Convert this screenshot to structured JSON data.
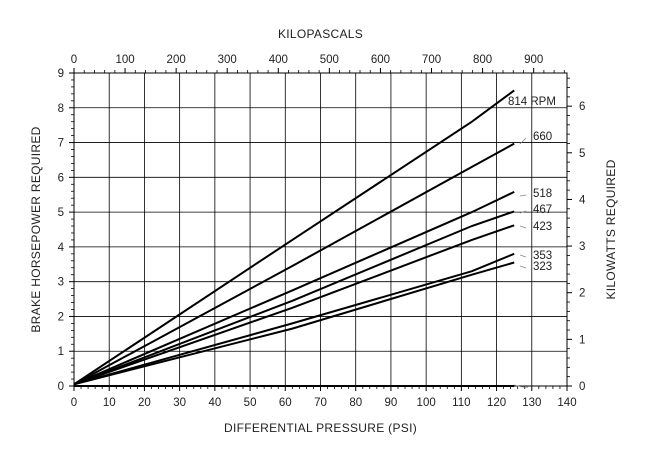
{
  "chart_data": {
    "type": "line",
    "xlabel": "DIFFERENTIAL PRESSURE (PSI)",
    "ylabel": "BRAKE HORSEPOWER REQUIRED",
    "x2label": "KILOPASCALS",
    "y2label": "KILOWATTS REQUIRED",
    "xlim": [
      0,
      140
    ],
    "ylim": [
      0,
      9
    ],
    "x2lim": [
      0,
      965.27
    ],
    "y2lim": [
      0,
      6.711
    ],
    "xticks": [
      0,
      10,
      20,
      30,
      40,
      50,
      60,
      70,
      80,
      90,
      100,
      110,
      120,
      130,
      140
    ],
    "yticks": [
      0,
      1,
      2,
      3,
      4,
      5,
      6,
      7,
      8,
      9
    ],
    "x2ticks": [
      0,
      100,
      200,
      300,
      400,
      500,
      600,
      700,
      800,
      900
    ],
    "y2ticks": [
      0,
      1,
      2,
      3,
      4,
      5,
      6
    ],
    "grid": true,
    "series": [
      {
        "name": "814 RPM",
        "points": [
          [
            0,
            0.05
          ],
          [
            62,
            4.2
          ],
          [
            113,
            7.6
          ],
          [
            125,
            8.5
          ]
        ]
      },
      {
        "name": "660",
        "points": [
          [
            0,
            0.05
          ],
          [
            62,
            3.45
          ],
          [
            113,
            6.3
          ],
          [
            125,
            6.97
          ]
        ]
      },
      {
        "name": "518",
        "points": [
          [
            0,
            0.05
          ],
          [
            62,
            2.75
          ],
          [
            113,
            5.0
          ],
          [
            125,
            5.58
          ]
        ]
      },
      {
        "name": "467",
        "points": [
          [
            0,
            0.05
          ],
          [
            62,
            2.45
          ],
          [
            113,
            4.6
          ],
          [
            125,
            5.02
          ]
        ]
      },
      {
        "name": "423",
        "points": [
          [
            0,
            0.05
          ],
          [
            62,
            2.25
          ],
          [
            113,
            4.2
          ],
          [
            125,
            4.62
          ]
        ]
      },
      {
        "name": "353",
        "points": [
          [
            0,
            0.05
          ],
          [
            62,
            1.8
          ],
          [
            113,
            3.3
          ],
          [
            125,
            3.8
          ]
        ]
      },
      {
        "name": "323",
        "points": [
          [
            0,
            0.05
          ],
          [
            62,
            1.65
          ],
          [
            113,
            3.2
          ],
          [
            125,
            3.55
          ]
        ]
      },
      {
        "name": "",
        "points": [
          [
            0,
            0.0
          ],
          [
            125,
            0.0
          ]
        ]
      }
    ]
  }
}
